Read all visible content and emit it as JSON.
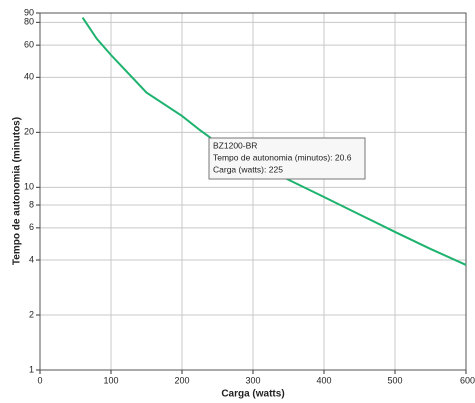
{
  "chart_data": {
    "type": "line",
    "x_label": "Carga (watts)",
    "y_label": "Tempo de autonomia (minutos)",
    "x": [
      60,
      80,
      100,
      150,
      200,
      225,
      250,
      300,
      350,
      400,
      450,
      500,
      550,
      600
    ],
    "series": [
      {
        "name": "BZ1200-BR",
        "color": "#1db36e",
        "values": [
          85,
          65,
          53,
          33,
          24.6,
          20.6,
          17.5,
          13.7,
          11,
          8.85,
          7.1,
          5.7,
          4.6,
          3.76
        ]
      }
    ],
    "xlim": [
      0,
      600
    ],
    "xticks": [
      0,
      100,
      200,
      300,
      400,
      500,
      600
    ],
    "ylim": [
      1,
      90
    ],
    "yticks": [
      1,
      2,
      4,
      6,
      8,
      10,
      20,
      40,
      60,
      80,
      90
    ],
    "y_scale": "log",
    "grid": true,
    "tooltip": {
      "lines": [
        "BZ1200-BR",
        "Tempo de autonomia (minutos): 20.6",
        "Carga (watts): 225"
      ]
    }
  }
}
